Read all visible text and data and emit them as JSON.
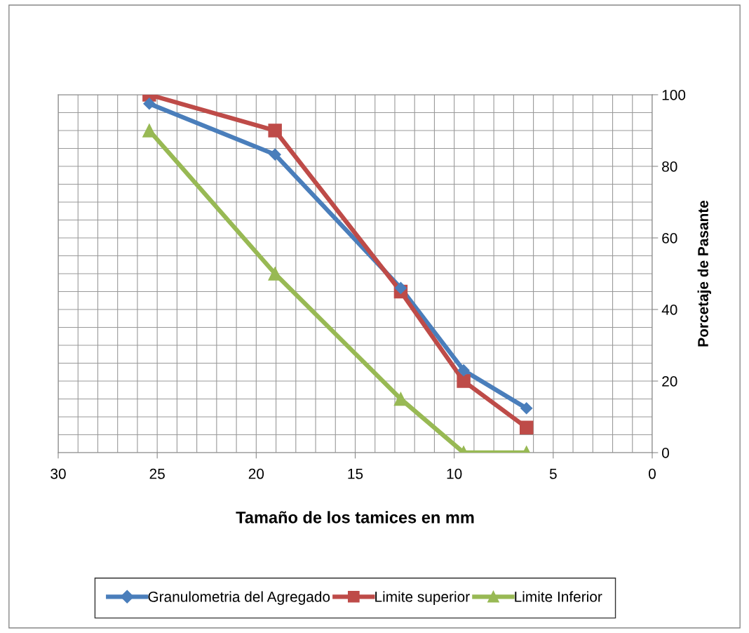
{
  "chart_data": {
    "type": "line",
    "xlabel": "Tamaño de los tamices en mm",
    "ylabel": "Porcetaje de Pasante",
    "x": [
      25.4,
      19.05,
      12.7,
      9.525,
      6.35
    ],
    "series": [
      {
        "name": "Granulometria del Agregado",
        "color": "#4a7ebb",
        "marker": "diamond",
        "values": [
          97.5,
          83.3,
          46,
          23,
          12.4
        ]
      },
      {
        "name": "Limite superior",
        "color": "#be4b48",
        "marker": "square",
        "values": [
          100,
          90,
          45,
          20,
          7
        ]
      },
      {
        "name": "Limite Inferior",
        "color": "#98b954",
        "marker": "triangle",
        "values": [
          90,
          50,
          15,
          0,
          0
        ]
      }
    ],
    "xlim": [
      30,
      0
    ],
    "xticks": [
      30,
      25,
      20,
      15,
      10,
      5,
      0
    ],
    "ylim": [
      0,
      100
    ],
    "yticks": [
      0,
      20,
      40,
      60,
      80,
      100
    ],
    "grid": true,
    "legend": "bottom",
    "line_style": "solid"
  }
}
